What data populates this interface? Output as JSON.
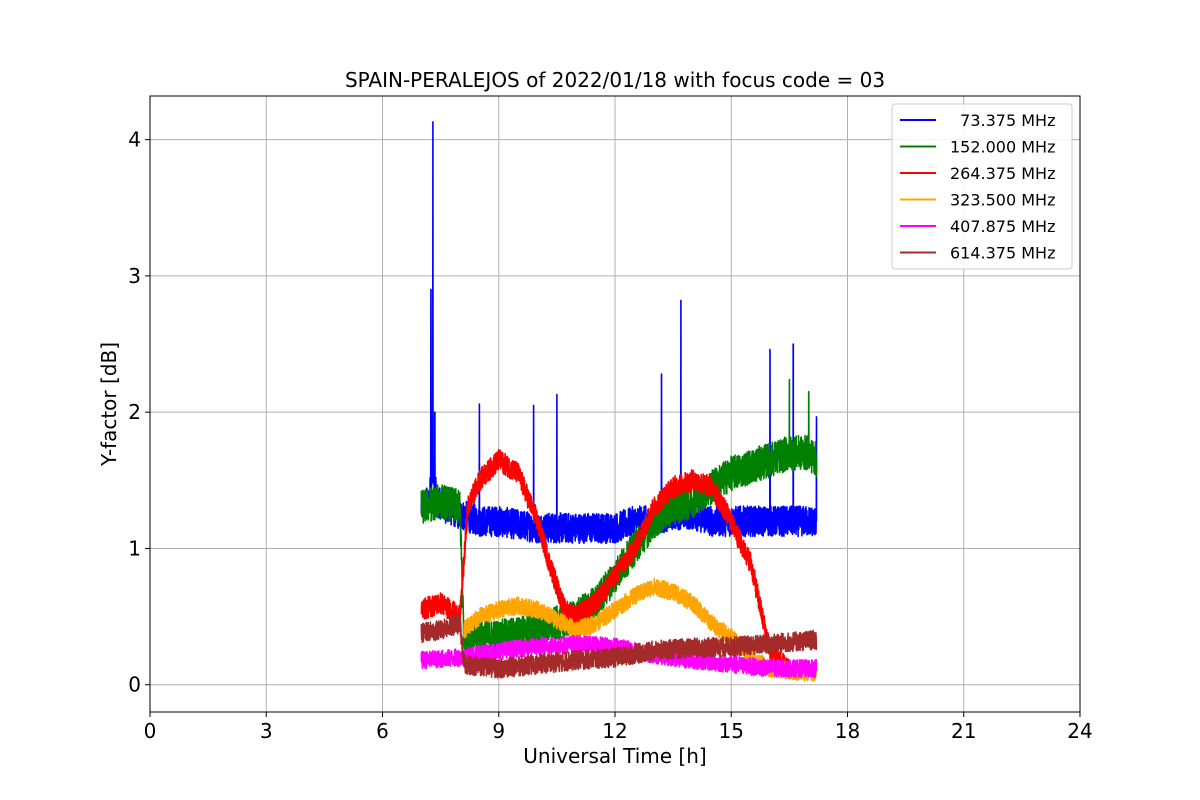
{
  "chart_data": {
    "type": "line",
    "title": "SPAIN-PERALEJOS of 2022/01/18 with focus code = 03",
    "xlabel": "Universal Time [h]",
    "ylabel": "Y-factor [dB]",
    "xlim": [
      0,
      24
    ],
    "ylim": [
      -0.2,
      4.32
    ],
    "x_ticks": [
      0,
      3,
      6,
      9,
      12,
      15,
      18,
      21,
      24
    ],
    "x_tick_labels": [
      "0",
      "3",
      "6",
      "9",
      "12",
      "15",
      "18",
      "21",
      "24"
    ],
    "y_ticks": [
      0,
      1,
      2,
      3,
      4
    ],
    "y_tick_labels": [
      "0",
      "1",
      "2",
      "3",
      "4"
    ],
    "grid": true,
    "legend_position": "top-right",
    "series": [
      {
        "name": "  73.375 MHz",
        "color": "#0000ff",
        "noise": 0.07,
        "x": [
          7.0,
          7.2,
          7.3,
          7.4,
          7.6,
          8.0,
          8.5,
          9.0,
          10.0,
          11.0,
          12.0,
          12.5,
          13.0,
          13.5,
          14.0,
          14.5,
          15.0,
          16.0,
          17.2
        ],
        "y": [
          1.3,
          1.35,
          1.6,
          1.35,
          1.3,
          1.25,
          1.2,
          1.2,
          1.15,
          1.15,
          1.15,
          1.2,
          1.2,
          1.25,
          1.25,
          1.2,
          1.2,
          1.2,
          1.2
        ],
        "spikes": [
          [
            7.25,
            2.9
          ],
          [
            7.3,
            4.13
          ],
          [
            7.35,
            2.0
          ],
          [
            8.5,
            2.06
          ],
          [
            9.9,
            2.05
          ],
          [
            10.5,
            2.13
          ],
          [
            13.2,
            2.28
          ],
          [
            13.7,
            2.82
          ],
          [
            16.0,
            2.46
          ],
          [
            16.6,
            2.5
          ],
          [
            17.2,
            1.97
          ]
        ]
      },
      {
        "name": "152.000 MHz",
        "color": "#008000",
        "noise": 0.08,
        "x": [
          7.0,
          7.5,
          8.0,
          8.1,
          8.5,
          9.0,
          10.0,
          11.0,
          11.5,
          12.0,
          12.5,
          13.0,
          13.5,
          14.0,
          14.5,
          15.0,
          15.5,
          16.0,
          16.5,
          17.0,
          17.2
        ],
        "y": [
          1.3,
          1.35,
          1.3,
          0.35,
          0.35,
          0.35,
          0.4,
          0.5,
          0.6,
          0.8,
          1.0,
          1.2,
          1.3,
          1.35,
          1.45,
          1.55,
          1.6,
          1.65,
          1.7,
          1.7,
          1.65
        ],
        "spikes": [
          [
            16.5,
            2.24
          ],
          [
            17.0,
            2.15
          ]
        ]
      },
      {
        "name": "264.375 MHz",
        "color": "#ff0000",
        "noise": 0.05,
        "x": [
          7.0,
          7.5,
          8.0,
          8.2,
          8.5,
          9.0,
          9.5,
          10.0,
          10.3,
          10.7,
          11.0,
          11.5,
          12.0,
          12.5,
          13.0,
          13.5,
          14.0,
          14.5,
          15.0,
          15.3,
          15.5,
          15.8,
          16.0,
          16.5
        ],
        "y": [
          0.55,
          0.6,
          0.5,
          1.3,
          1.5,
          1.65,
          1.55,
          1.2,
          0.9,
          0.55,
          0.5,
          0.6,
          0.8,
          1.0,
          1.3,
          1.45,
          1.5,
          1.45,
          1.2,
          1.0,
          0.9,
          0.5,
          0.25,
          0.1
        ]
      },
      {
        "name": "323.500 MHz",
        "color": "#ffa500",
        "noise": 0.04,
        "x": [
          8.1,
          8.5,
          9.0,
          9.5,
          10.0,
          11.0,
          11.5,
          12.0,
          12.5,
          13.0,
          13.5,
          14.0,
          14.5,
          15.0,
          15.5,
          16.0,
          17.2
        ],
        "y": [
          0.4,
          0.5,
          0.55,
          0.58,
          0.55,
          0.4,
          0.45,
          0.55,
          0.65,
          0.72,
          0.68,
          0.6,
          0.45,
          0.35,
          0.2,
          0.12,
          0.08
        ]
      },
      {
        "name": "407.875 MHz",
        "color": "#ff00ff",
        "noise": 0.04,
        "x": [
          7.0,
          8.0,
          9.0,
          10.0,
          11.0,
          12.0,
          13.0,
          14.0,
          15.0,
          16.0,
          17.2
        ],
        "y": [
          0.18,
          0.2,
          0.25,
          0.28,
          0.3,
          0.28,
          0.22,
          0.18,
          0.15,
          0.12,
          0.12
        ]
      },
      {
        "name": "614.375 MHz",
        "color": "#a52a2a",
        "noise": 0.045,
        "x": [
          7.0,
          7.5,
          8.0,
          8.1,
          9.0,
          10.0,
          11.0,
          12.0,
          13.0,
          14.0,
          15.0,
          16.0,
          17.2
        ],
        "y": [
          0.38,
          0.4,
          0.45,
          0.15,
          0.12,
          0.15,
          0.18,
          0.2,
          0.25,
          0.27,
          0.28,
          0.3,
          0.33
        ]
      }
    ]
  }
}
